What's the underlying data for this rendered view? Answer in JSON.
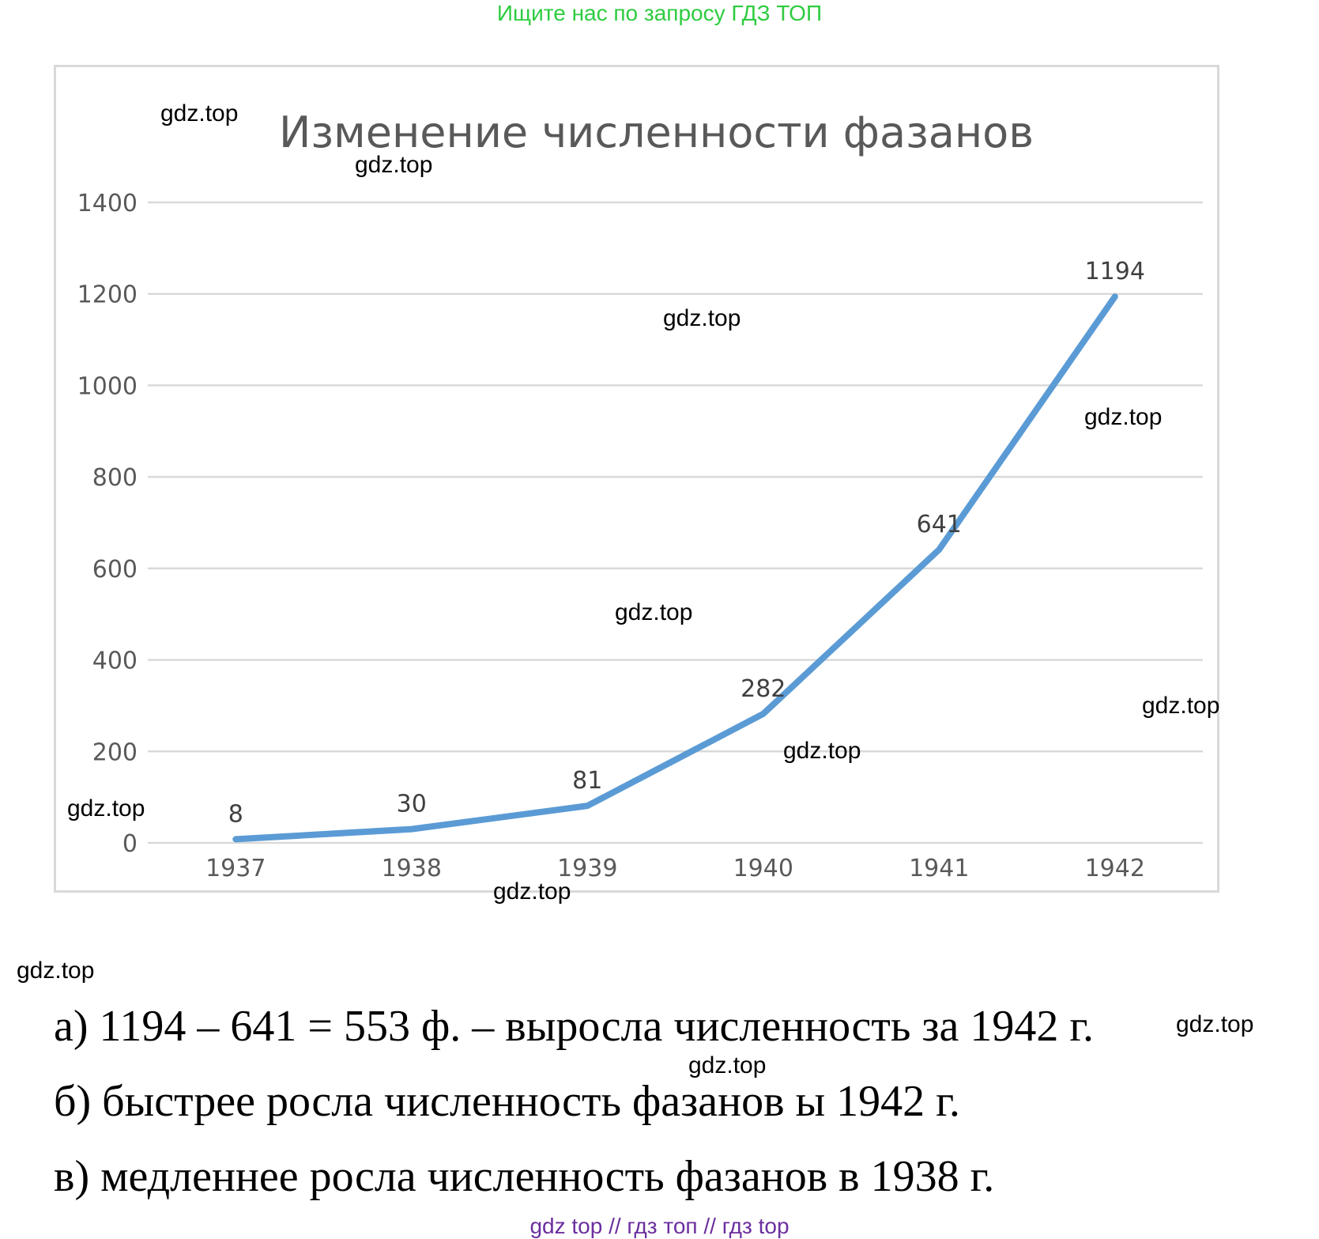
{
  "banner": "Ищите нас по запросу ГДЗ ТОП",
  "chart_data": {
    "type": "line",
    "title": "Изменение численности фазанов",
    "categories": [
      "1937",
      "1938",
      "1939",
      "1940",
      "1941",
      "1942"
    ],
    "values": [
      8,
      30,
      81,
      282,
      641,
      1194
    ],
    "data_labels": [
      "8",
      "30",
      "81",
      "282",
      "641",
      "1194"
    ],
    "y_ticks": [
      "0",
      "200",
      "400",
      "600",
      "800",
      "1000",
      "1200",
      "1400"
    ],
    "ylim": [
      0,
      1400
    ],
    "grid": true,
    "legend": "none",
    "line_color": "#5b9bd5"
  },
  "watermarks": [
    "gdz.top",
    "gdz.top",
    "gdz.top",
    "gdz.top",
    "gdz.top",
    "gdz.top",
    "gdz.top",
    "gdz.top",
    "gdz.top",
    "gdz.top",
    "gdz.top",
    "gdz.top"
  ],
  "answers": {
    "a": "а) 1194 – 641 = 553 ф. – выросла численность за 1942 г.",
    "b": "б) быстрее росла численность фазанов ы 1942 г.",
    "c": "в) медленнее росла численность фазанов в 1938 г."
  },
  "footer": "gdz top  //  гдз топ  //  гдз top"
}
